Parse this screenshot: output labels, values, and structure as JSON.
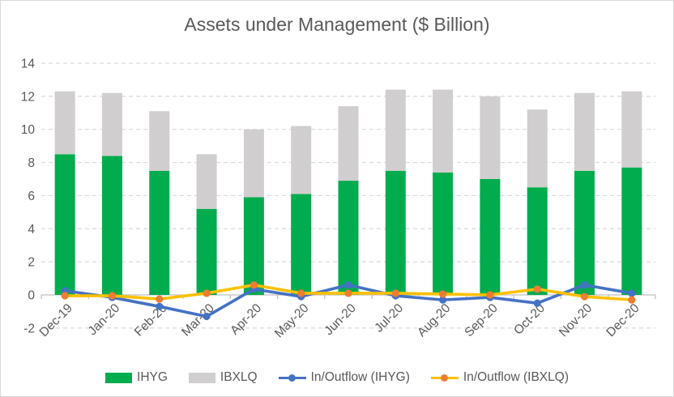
{
  "title": "Assets under Management ($ Billion)",
  "colors": {
    "background": "#FFFFFF",
    "border": "#D9D9D9",
    "text": "#595959",
    "gridline": "#D9D9D9",
    "axis_line": "#BFBFBF",
    "ihyg_green": "#00AC4E",
    "ibxlq_gray": "#D0CECE",
    "flow_ihyg_blue": "#4472C4",
    "flow_ibxlq_yellow": "#FFC000",
    "flow_ibxlq_marker": "#ED7D31"
  },
  "y_axis": {
    "min": -2,
    "max": 14,
    "step": 2
  },
  "chart_data": {
    "type": "bar",
    "subtype": "stacked-columns-with-lines",
    "title": "Assets under Management ($ Billion)",
    "categories": [
      "Dec-19",
      "Jan-20",
      "Feb-20",
      "Mar-20",
      "Apr-20",
      "May-20",
      "Jun-20",
      "Jul-20",
      "Aug-20",
      "Sep-20",
      "Oct-20",
      "Nov-20",
      "Dec-20"
    ],
    "series": [
      {
        "name": "IHYG",
        "type": "bar-stacked",
        "color": "#00AC4E",
        "values": [
          8.5,
          8.4,
          7.5,
          5.2,
          5.9,
          6.1,
          6.9,
          7.5,
          7.4,
          7.0,
          6.5,
          7.5,
          7.7
        ]
      },
      {
        "name": "IBXLQ",
        "type": "bar-stacked",
        "color": "#D0CECE",
        "values": [
          3.8,
          3.8,
          3.6,
          3.3,
          4.1,
          4.1,
          4.5,
          4.9,
          5.0,
          5.0,
          4.7,
          4.7,
          4.6
        ]
      },
      {
        "name": "In/Outflow (IHYG)",
        "type": "line",
        "color": "#4472C4",
        "marker_color": "#4472C4",
        "values": [
          0.25,
          -0.15,
          -0.7,
          -1.3,
          0.35,
          -0.1,
          0.6,
          -0.05,
          -0.3,
          -0.15,
          -0.5,
          0.6,
          0.1
        ]
      },
      {
        "name": "In/Outflow (IBXLQ)",
        "type": "line",
        "color": "#FFC000",
        "marker_color": "#ED7D31",
        "values": [
          -0.05,
          -0.05,
          -0.25,
          0.1,
          0.6,
          0.1,
          0.1,
          0.1,
          0.05,
          0.0,
          0.35,
          -0.1,
          -0.3
        ]
      }
    ],
    "stacked_totals": [
      12.3,
      12.2,
      11.1,
      8.5,
      10.0,
      10.2,
      11.4,
      12.4,
      12.4,
      12.0,
      11.2,
      12.2,
      12.3
    ],
    "ylim": [
      -2,
      14
    ],
    "ytick_step": 2,
    "grid": "horizontal-dashed",
    "legend_position": "bottom"
  }
}
